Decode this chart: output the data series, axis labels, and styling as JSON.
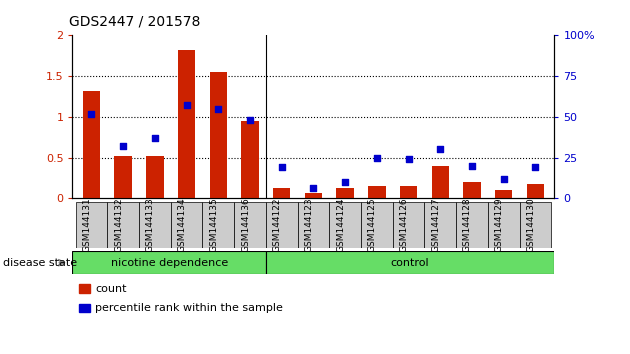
{
  "title": "GDS2447 / 201578",
  "samples": [
    "GSM144131",
    "GSM144132",
    "GSM144133",
    "GSM144134",
    "GSM144135",
    "GSM144136",
    "GSM144122",
    "GSM144123",
    "GSM144124",
    "GSM144125",
    "GSM144126",
    "GSM144127",
    "GSM144128",
    "GSM144129",
    "GSM144130"
  ],
  "count_values": [
    1.32,
    0.52,
    0.52,
    1.82,
    1.55,
    0.95,
    0.12,
    0.07,
    0.12,
    0.15,
    0.15,
    0.4,
    0.2,
    0.1,
    0.18
  ],
  "percentile_values": [
    52,
    32,
    37,
    57,
    55,
    48,
    19,
    6,
    10,
    25,
    24,
    30,
    20,
    12,
    19
  ],
  "groups": [
    {
      "label": "nicotine dependence",
      "start": 0,
      "end": 6,
      "color": "#66dd66"
    },
    {
      "label": "control",
      "start": 6,
      "end": 15,
      "color": "#66dd66"
    }
  ],
  "group_separator": 6,
  "bar_color": "#cc2200",
  "dot_color": "#0000cc",
  "left_ylim": [
    0,
    2
  ],
  "right_ylim": [
    0,
    100
  ],
  "left_yticks": [
    0,
    0.5,
    1.0,
    1.5,
    2.0
  ],
  "right_yticks": [
    0,
    25,
    50,
    75,
    100
  ],
  "right_yticklabels": [
    "0",
    "25",
    "50",
    "75",
    "100%"
  ],
  "left_yticklabels": [
    "0",
    "0.5",
    "1",
    "1.5",
    "2"
  ],
  "grid_values": [
    0.5,
    1.0,
    1.5
  ],
  "disease_state_label": "disease state",
  "legend_count_label": "count",
  "legend_percentile_label": "percentile rank within the sample",
  "background_color": "#ffffff",
  "tick_bg_color": "#cccccc"
}
